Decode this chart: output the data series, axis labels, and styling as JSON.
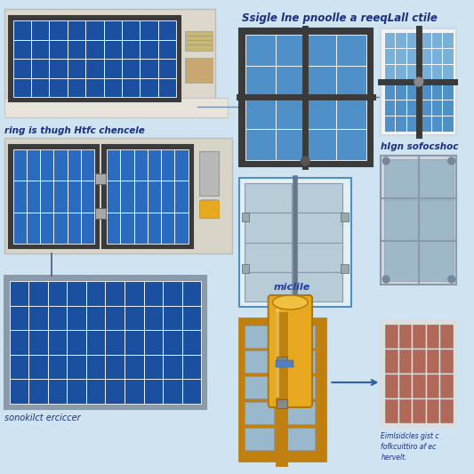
{
  "background_color": "#cfe3f0",
  "title": "Ssigle lne pnoolle a reeqLall ctile",
  "left_label": "ring is thugh Htfc chencele",
  "bottom_left_label": "sonokilct erciccer",
  "middle_label": "miclile",
  "right_top_label": "hIgn sofocshoc",
  "right_bottom_label_l1": "Eimlsidcles gist c",
  "right_bottom_label_l2": "fofkcuittiro af ec",
  "right_bottom_label_l3": "hervelt.",
  "panel_blue_dark": "#1b4fa0",
  "panel_blue_mid": "#2a6abf",
  "panel_blue_light": "#5090c8",
  "panel_blue_pale": "#7ab0d8",
  "panel_gray": "#9fb8c8",
  "panel_gray_light": "#b8ccd8",
  "panel_brown": "#b06858",
  "frame_silver": "#8a9aaa",
  "frame_dark": "#3a3a3a",
  "frame_light": "#c0c8d0",
  "bg_wall": "#ddd8cc",
  "bg_surface": "#d8d4c8",
  "yellow_gold": "#e8a820",
  "yellow_top": "#f0c040",
  "text_blue_dark": "#1a3080",
  "text_blue": "#2040a0"
}
